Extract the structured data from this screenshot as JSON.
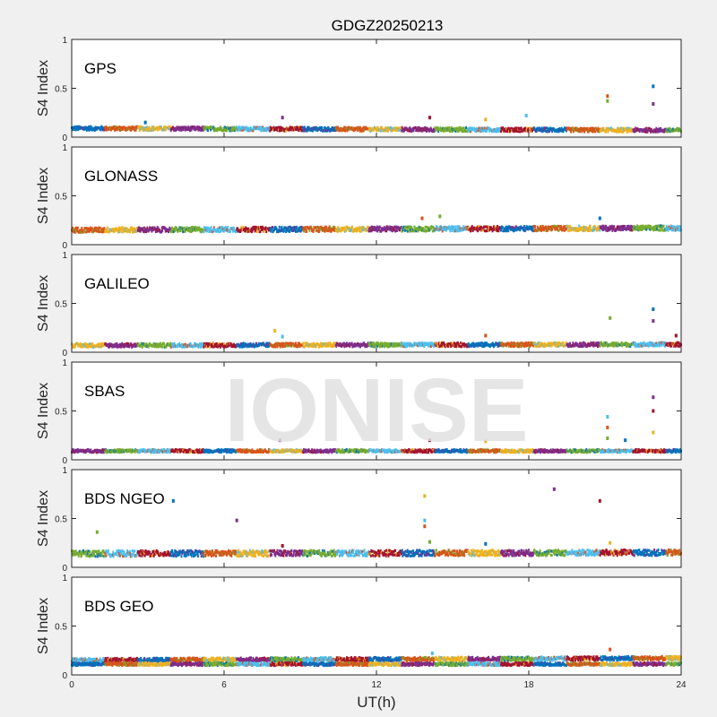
{
  "chart_data": {
    "type": "scatter",
    "title": "GDGZ20250213",
    "xlabel": "UT(h)",
    "ylabel": "S4 Index",
    "xlim": [
      0,
      24
    ],
    "ylim": [
      0,
      1
    ],
    "x_ticks": [
      "0",
      "6",
      "12",
      "18",
      "24"
    ],
    "y_ticks": [
      "0",
      "0.5",
      "1"
    ],
    "watermark": "IONISE",
    "series_colors": [
      "#0072BD",
      "#D95319",
      "#EDB120",
      "#7E2F8E",
      "#77AC30",
      "#4DBEEE",
      "#A2142F"
    ],
    "panels": [
      {
        "name": "GPS",
        "bands": [
          {
            "x": [
              0,
              24
            ],
            "y": [
              0.09,
              0.07
            ],
            "spread": 0.04
          }
        ],
        "spikes": [
          {
            "x": 2.9,
            "y": 0.15
          },
          {
            "x": 8.3,
            "y": 0.2
          },
          {
            "x": 14.1,
            "y": 0.2
          },
          {
            "x": 16.3,
            "y": 0.18
          },
          {
            "x": 17.9,
            "y": 0.22
          },
          {
            "x": 21.1,
            "y": 0.42
          },
          {
            "x": 21.1,
            "y": 0.37
          },
          {
            "x": 22.9,
            "y": 0.52
          },
          {
            "x": 22.9,
            "y": 0.34
          }
        ]
      },
      {
        "name": "GLONASS",
        "bands": [
          {
            "x": [
              0,
              24
            ],
            "y": [
              0.15,
              0.17
            ],
            "spread": 0.05
          }
        ],
        "spikes": [
          {
            "x": 13.8,
            "y": 0.27
          },
          {
            "x": 14.5,
            "y": 0.29
          },
          {
            "x": 20.8,
            "y": 0.27
          }
        ]
      },
      {
        "name": "GALILEO",
        "bands": [
          {
            "x": [
              0,
              24
            ],
            "y": [
              0.07,
              0.08
            ],
            "spread": 0.04
          }
        ],
        "spikes": [
          {
            "x": 8.0,
            "y": 0.22
          },
          {
            "x": 8.3,
            "y": 0.16
          },
          {
            "x": 16.3,
            "y": 0.17
          },
          {
            "x": 21.2,
            "y": 0.35
          },
          {
            "x": 22.9,
            "y": 0.44
          },
          {
            "x": 22.9,
            "y": 0.32
          },
          {
            "x": 23.8,
            "y": 0.17
          }
        ]
      },
      {
        "name": "SBAS",
        "bands": [
          {
            "x": [
              0,
              24
            ],
            "y": [
              0.09,
              0.09
            ],
            "spread": 0.03
          }
        ],
        "spikes": [
          {
            "x": 8.2,
            "y": 0.2
          },
          {
            "x": 14.1,
            "y": 0.2
          },
          {
            "x": 16.3,
            "y": 0.19
          },
          {
            "x": 21.1,
            "y": 0.44
          },
          {
            "x": 21.1,
            "y": 0.33
          },
          {
            "x": 21.1,
            "y": 0.22
          },
          {
            "x": 21.8,
            "y": 0.2
          },
          {
            "x": 22.9,
            "y": 0.64
          },
          {
            "x": 22.9,
            "y": 0.5
          },
          {
            "x": 22.9,
            "y": 0.28
          }
        ]
      },
      {
        "name": "BDS NGEO",
        "bands": [
          {
            "x": [
              0,
              24
            ],
            "y": [
              0.14,
              0.15
            ],
            "spread": 0.06
          }
        ],
        "spikes": [
          {
            "x": 1.0,
            "y": 0.36
          },
          {
            "x": 4.0,
            "y": 0.68
          },
          {
            "x": 6.5,
            "y": 0.48
          },
          {
            "x": 8.3,
            "y": 0.22
          },
          {
            "x": 13.9,
            "y": 0.73
          },
          {
            "x": 13.9,
            "y": 0.48
          },
          {
            "x": 13.9,
            "y": 0.42
          },
          {
            "x": 14.1,
            "y": 0.26
          },
          {
            "x": 16.3,
            "y": 0.24
          },
          {
            "x": 19.0,
            "y": 0.8
          },
          {
            "x": 20.8,
            "y": 0.68
          },
          {
            "x": 21.2,
            "y": 0.25
          }
        ]
      },
      {
        "name": "BDS GEO",
        "bands": [
          {
            "x": [
              0,
              24
            ],
            "y": [
              0.15,
              0.17
            ],
            "spread": 0.04
          },
          {
            "x": [
              0,
              24
            ],
            "y": [
              0.11,
              0.11
            ],
            "spread": 0.03
          }
        ],
        "spikes": [
          {
            "x": 14.2,
            "y": 0.22
          },
          {
            "x": 21.2,
            "y": 0.26
          }
        ]
      }
    ]
  }
}
